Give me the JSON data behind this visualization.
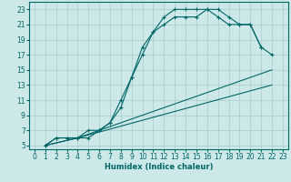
{
  "xlabel": "Humidex (Indice chaleur)",
  "bg_color": "#cde8e8",
  "line_color": "#006666",
  "grid_color": "#aacccc",
  "xlim": [
    -0.5,
    23.5
  ],
  "ylim": [
    4.5,
    24
  ],
  "xticks": [
    0,
    1,
    2,
    3,
    4,
    5,
    6,
    7,
    8,
    9,
    10,
    11,
    12,
    13,
    14,
    15,
    16,
    17,
    18,
    19,
    20,
    21,
    22,
    23
  ],
  "yticks": [
    5,
    7,
    9,
    11,
    13,
    15,
    17,
    19,
    21,
    23
  ],
  "line1_x": [
    1,
    2,
    3,
    4,
    5,
    6,
    7,
    8,
    9,
    10,
    11,
    12,
    13,
    14,
    15,
    16,
    17,
    18,
    19,
    20,
    21
  ],
  "line1_y": [
    5,
    6,
    6,
    6,
    6,
    7,
    8,
    11,
    14,
    18,
    20,
    22,
    23,
    23,
    23,
    23,
    22,
    21,
    21,
    21,
    18
  ],
  "line2_x": [
    1,
    2,
    3,
    4,
    5,
    6,
    7,
    8,
    9,
    10,
    11,
    12,
    13,
    14,
    15,
    16,
    17,
    18,
    19,
    20,
    21,
    22
  ],
  "line2_y": [
    5,
    6,
    6,
    6,
    7,
    7,
    8,
    10,
    14,
    17,
    20,
    21,
    22,
    22,
    22,
    23,
    23,
    22,
    21,
    21,
    18,
    17
  ],
  "line3_x": [
    1,
    4,
    22
  ],
  "line3_y": [
    5,
    6,
    15
  ],
  "line4_x": [
    1,
    4,
    22
  ],
  "line4_y": [
    5,
    6,
    13
  ]
}
